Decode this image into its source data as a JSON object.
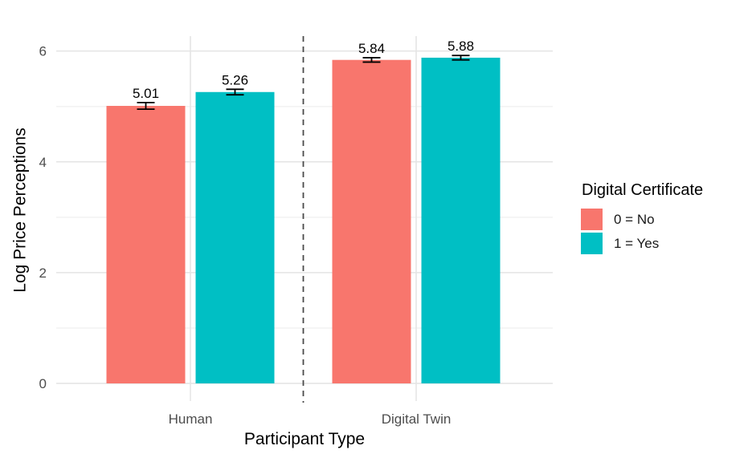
{
  "chart_data": {
    "type": "bar",
    "xlabel": "Participant Type",
    "ylabel": "Log Price Perceptions",
    "categories": [
      "Human",
      "Digital Twin"
    ],
    "series": [
      {
        "name": "0 = No",
        "color": "#F8766D",
        "values": [
          5.01,
          5.84
        ],
        "labels": [
          "5.01",
          "5.84"
        ],
        "errors": [
          0.06,
          0.04
        ]
      },
      {
        "name": "1 = Yes",
        "color": "#00BFC4",
        "values": [
          5.26,
          5.88
        ],
        "labels": [
          "5.26",
          "5.88"
        ],
        "errors": [
          0.05,
          0.04
        ]
      }
    ],
    "y_ticks": [
      0,
      2,
      4,
      6
    ],
    "ylim": [
      0,
      6.27
    ],
    "grid": true,
    "error_bars": true,
    "separator_line": {
      "style": "dashed",
      "between": [
        "Human",
        "Digital Twin"
      ]
    },
    "legend": {
      "title": "Digital Certificate",
      "position": "right"
    },
    "colors": {
      "background": "#FFFFFF",
      "grid_major": "#E4E4E4",
      "grid_minor": "#F2F2F2",
      "axis_text": "#4D4D4D",
      "label_text": "#000000",
      "separator": "#4A4A4A"
    }
  }
}
